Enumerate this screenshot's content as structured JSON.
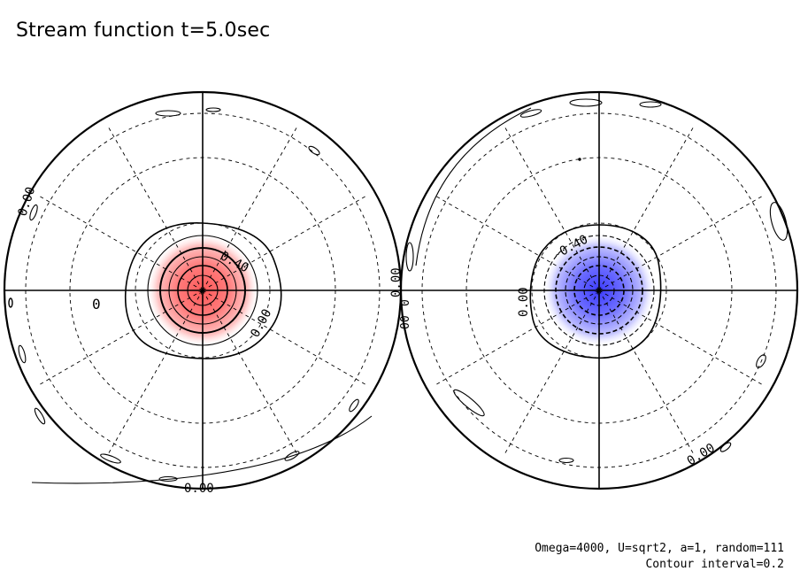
{
  "title": "Stream function t=5.0sec",
  "footnote": {
    "line1": "Omega=4000, U=sqrt2, a=1, random=111",
    "line2": "Contour interval=0.2"
  },
  "colors": {
    "positive": "#ff5a5a",
    "negative": "#5a5aff",
    "line": "#000000"
  },
  "chart_data": [
    {
      "type": "contour",
      "projection": "polar-orthographic",
      "hemisphere": "left",
      "field_sign": "positive",
      "fill_color": "#ff5a5a",
      "contour_interval": 0.2,
      "max_value": 1.2,
      "contour_levels": [
        0.0,
        0.2,
        0.4,
        0.6,
        0.8,
        1.0
      ],
      "labels": [
        "0.00",
        "0.40",
        "0.00",
        "0",
        "0.00"
      ],
      "grid": true,
      "graticule_latitude_circles": 3,
      "graticule_meridians": 12
    },
    {
      "type": "contour",
      "projection": "polar-orthographic",
      "hemisphere": "right",
      "field_sign": "negative",
      "fill_color": "#5a5aff",
      "contour_interval": 0.2,
      "min_value": -1.2,
      "contour_levels": [
        0.0,
        -0.2,
        -0.4,
        -0.6,
        -0.8,
        -1.0
      ],
      "labels": [
        "-0.40",
        "0.00",
        "0.00",
        "0.00"
      ],
      "grid": true,
      "graticule_latitude_circles": 3,
      "graticule_meridians": 12
    }
  ]
}
